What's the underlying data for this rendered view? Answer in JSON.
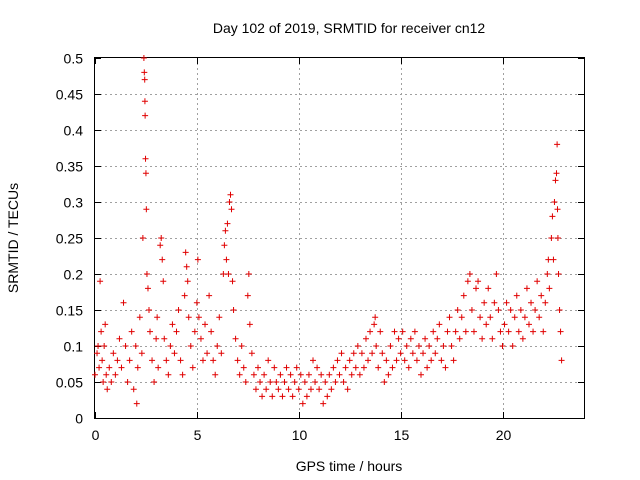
{
  "chart_data": {
    "type": "scatter",
    "title": "Day 102 of 2019, SRMTID for receiver cn12",
    "xlabel": "GPS time / hours",
    "ylabel": "SRMTID / TECUs",
    "xlim": [
      0,
      24
    ],
    "ylim": [
      0,
      0.5
    ],
    "xticks": [
      0,
      5,
      10,
      15,
      20
    ],
    "yticks": [
      0,
      0.05,
      0.1,
      0.15,
      0.2,
      0.25,
      0.3,
      0.35,
      0.4,
      0.45,
      0.5
    ],
    "grid": true,
    "marker": "+",
    "marker_color": "#e00000",
    "series": [
      {
        "name": "cn12",
        "points": [
          [
            0.0,
            0.06
          ],
          [
            0.1,
            0.09
          ],
          [
            0.15,
            0.1
          ],
          [
            0.2,
            0.07
          ],
          [
            0.25,
            0.19
          ],
          [
            0.3,
            0.12
          ],
          [
            0.35,
            0.08
          ],
          [
            0.4,
            0.05
          ],
          [
            0.45,
            0.1
          ],
          [
            0.5,
            0.13
          ],
          [
            0.55,
            0.06
          ],
          [
            0.6,
            0.04
          ],
          [
            0.7,
            0.07
          ],
          [
            0.8,
            0.05
          ],
          [
            0.9,
            0.09
          ],
          [
            1.0,
            0.06
          ],
          [
            1.1,
            0.08
          ],
          [
            1.2,
            0.11
          ],
          [
            1.3,
            0.07
          ],
          [
            1.4,
            0.16
          ],
          [
            1.5,
            0.1
          ],
          [
            1.6,
            0.05
          ],
          [
            1.7,
            0.08
          ],
          [
            1.8,
            0.12
          ],
          [
            1.9,
            0.04
          ],
          [
            2.0,
            0.1
          ],
          [
            2.05,
            0.02
          ],
          [
            2.1,
            0.07
          ],
          [
            2.2,
            0.14
          ],
          [
            2.3,
            0.09
          ],
          [
            2.35,
            0.25
          ],
          [
            2.4,
            0.5
          ],
          [
            2.42,
            0.48
          ],
          [
            2.44,
            0.47
          ],
          [
            2.45,
            0.44
          ],
          [
            2.46,
            0.42
          ],
          [
            2.48,
            0.36
          ],
          [
            2.5,
            0.34
          ],
          [
            2.52,
            0.29
          ],
          [
            2.55,
            0.2
          ],
          [
            2.6,
            0.18
          ],
          [
            2.65,
            0.15
          ],
          [
            2.7,
            0.12
          ],
          [
            2.8,
            0.08
          ],
          [
            2.9,
            0.05
          ],
          [
            3.0,
            0.11
          ],
          [
            3.05,
            0.14
          ],
          [
            3.1,
            0.07
          ],
          [
            3.2,
            0.24
          ],
          [
            3.25,
            0.25
          ],
          [
            3.3,
            0.22
          ],
          [
            3.35,
            0.19
          ],
          [
            3.4,
            0.11
          ],
          [
            3.5,
            0.08
          ],
          [
            3.6,
            0.06
          ],
          [
            3.7,
            0.1
          ],
          [
            3.8,
            0.13
          ],
          [
            3.9,
            0.09
          ],
          [
            4.0,
            0.12
          ],
          [
            4.1,
            0.15
          ],
          [
            4.2,
            0.08
          ],
          [
            4.3,
            0.06
          ],
          [
            4.4,
            0.17
          ],
          [
            4.45,
            0.23
          ],
          [
            4.5,
            0.21
          ],
          [
            4.55,
            0.19
          ],
          [
            4.6,
            0.14
          ],
          [
            4.7,
            0.1
          ],
          [
            4.8,
            0.07
          ],
          [
            4.9,
            0.12
          ],
          [
            5.0,
            0.16
          ],
          [
            5.05,
            0.22
          ],
          [
            5.1,
            0.14
          ],
          [
            5.2,
            0.11
          ],
          [
            5.3,
            0.08
          ],
          [
            5.4,
            0.13
          ],
          [
            5.5,
            0.09
          ],
          [
            5.6,
            0.17
          ],
          [
            5.7,
            0.12
          ],
          [
            5.8,
            0.08
          ],
          [
            5.9,
            0.06
          ],
          [
            6.0,
            0.1
          ],
          [
            6.1,
            0.14
          ],
          [
            6.2,
            0.09
          ],
          [
            6.3,
            0.2
          ],
          [
            6.35,
            0.24
          ],
          [
            6.4,
            0.26
          ],
          [
            6.45,
            0.22
          ],
          [
            6.5,
            0.27
          ],
          [
            6.55,
            0.2
          ],
          [
            6.6,
            0.3
          ],
          [
            6.65,
            0.31
          ],
          [
            6.7,
            0.29
          ],
          [
            6.75,
            0.19
          ],
          [
            6.8,
            0.15
          ],
          [
            6.9,
            0.11
          ],
          [
            7.0,
            0.08
          ],
          [
            7.1,
            0.06
          ],
          [
            7.2,
            0.1
          ],
          [
            7.3,
            0.07
          ],
          [
            7.4,
            0.05
          ],
          [
            7.5,
            0.17
          ],
          [
            7.55,
            0.2
          ],
          [
            7.6,
            0.13
          ],
          [
            7.7,
            0.09
          ],
          [
            7.8,
            0.06
          ],
          [
            7.9,
            0.04
          ],
          [
            8.0,
            0.07
          ],
          [
            8.1,
            0.05
          ],
          [
            8.2,
            0.03
          ],
          [
            8.3,
            0.06
          ],
          [
            8.4,
            0.04
          ],
          [
            8.5,
            0.08
          ],
          [
            8.6,
            0.05
          ],
          [
            8.7,
            0.03
          ],
          [
            8.8,
            0.07
          ],
          [
            8.9,
            0.05
          ],
          [
            9.0,
            0.04
          ],
          [
            9.1,
            0.06
          ],
          [
            9.2,
            0.03
          ],
          [
            9.3,
            0.05
          ],
          [
            9.4,
            0.07
          ],
          [
            9.5,
            0.04
          ],
          [
            9.6,
            0.06
          ],
          [
            9.7,
            0.03
          ],
          [
            9.8,
            0.05
          ],
          [
            9.9,
            0.07
          ],
          [
            10.0,
            0.04
          ],
          [
            10.1,
            0.06
          ],
          [
            10.2,
            0.02
          ],
          [
            10.3,
            0.05
          ],
          [
            10.4,
            0.03
          ],
          [
            10.5,
            0.06
          ],
          [
            10.6,
            0.04
          ],
          [
            10.7,
            0.08
          ],
          [
            10.8,
            0.05
          ],
          [
            10.9,
            0.07
          ],
          [
            11.0,
            0.04
          ],
          [
            11.1,
            0.06
          ],
          [
            11.2,
            0.02
          ],
          [
            11.3,
            0.05
          ],
          [
            11.4,
            0.03
          ],
          [
            11.5,
            0.06
          ],
          [
            11.6,
            0.04
          ],
          [
            11.7,
            0.07
          ],
          [
            11.8,
            0.05
          ],
          [
            11.9,
            0.08
          ],
          [
            12.0,
            0.06
          ],
          [
            12.1,
            0.09
          ],
          [
            12.2,
            0.05
          ],
          [
            12.3,
            0.07
          ],
          [
            12.4,
            0.04
          ],
          [
            12.5,
            0.08
          ],
          [
            12.6,
            0.06
          ],
          [
            12.7,
            0.09
          ],
          [
            12.8,
            0.07
          ],
          [
            12.9,
            0.1
          ],
          [
            13.0,
            0.06
          ],
          [
            13.1,
            0.09
          ],
          [
            13.2,
            0.07
          ],
          [
            13.3,
            0.11
          ],
          [
            13.4,
            0.08
          ],
          [
            13.5,
            0.12
          ],
          [
            13.6,
            0.09
          ],
          [
            13.7,
            0.13
          ],
          [
            13.75,
            0.14
          ],
          [
            13.8,
            0.1
          ],
          [
            13.9,
            0.07
          ],
          [
            14.0,
            0.12
          ],
          [
            14.1,
            0.09
          ],
          [
            14.2,
            0.05
          ],
          [
            14.3,
            0.08
          ],
          [
            14.4,
            0.06
          ],
          [
            14.5,
            0.1
          ],
          [
            14.6,
            0.07
          ],
          [
            14.7,
            0.12
          ],
          [
            14.8,
            0.08
          ],
          [
            14.9,
            0.11
          ],
          [
            15.0,
            0.09
          ],
          [
            15.1,
            0.12
          ],
          [
            15.2,
            0.08
          ],
          [
            15.3,
            0.1
          ],
          [
            15.4,
            0.07
          ],
          [
            15.5,
            0.11
          ],
          [
            15.6,
            0.09
          ],
          [
            15.7,
            0.12
          ],
          [
            15.8,
            0.08
          ],
          [
            15.9,
            0.1
          ],
          [
            16.0,
            0.06
          ],
          [
            16.1,
            0.09
          ],
          [
            16.2,
            0.11
          ],
          [
            16.3,
            0.07
          ],
          [
            16.4,
            0.1
          ],
          [
            16.5,
            0.08
          ],
          [
            16.6,
            0.12
          ],
          [
            16.7,
            0.09
          ],
          [
            16.8,
            0.11
          ],
          [
            16.9,
            0.13
          ],
          [
            17.0,
            0.08
          ],
          [
            17.1,
            0.1
          ],
          [
            17.2,
            0.07
          ],
          [
            17.3,
            0.12
          ],
          [
            17.4,
            0.14
          ],
          [
            17.5,
            0.1
          ],
          [
            17.6,
            0.08
          ],
          [
            17.7,
            0.12
          ],
          [
            17.8,
            0.15
          ],
          [
            17.9,
            0.11
          ],
          [
            18.0,
            0.14
          ],
          [
            18.1,
            0.17
          ],
          [
            18.2,
            0.12
          ],
          [
            18.3,
            0.19
          ],
          [
            18.4,
            0.2
          ],
          [
            18.5,
            0.15
          ],
          [
            18.6,
            0.12
          ],
          [
            18.7,
            0.18
          ],
          [
            18.8,
            0.19
          ],
          [
            18.9,
            0.14
          ],
          [
            19.0,
            0.11
          ],
          [
            19.1,
            0.16
          ],
          [
            19.2,
            0.13
          ],
          [
            19.3,
            0.18
          ],
          [
            19.4,
            0.14
          ],
          [
            19.5,
            0.11
          ],
          [
            19.6,
            0.16
          ],
          [
            19.7,
            0.2
          ],
          [
            19.8,
            0.15
          ],
          [
            19.9,
            0.12
          ],
          [
            20.0,
            0.1
          ],
          [
            20.1,
            0.13
          ],
          [
            20.2,
            0.16
          ],
          [
            20.3,
            0.12
          ],
          [
            20.4,
            0.15
          ],
          [
            20.5,
            0.1
          ],
          [
            20.6,
            0.14
          ],
          [
            20.7,
            0.17
          ],
          [
            20.8,
            0.12
          ],
          [
            20.9,
            0.15
          ],
          [
            21.0,
            0.11
          ],
          [
            21.1,
            0.14
          ],
          [
            21.2,
            0.18
          ],
          [
            21.3,
            0.13
          ],
          [
            21.4,
            0.16
          ],
          [
            21.5,
            0.12
          ],
          [
            21.6,
            0.15
          ],
          [
            21.7,
            0.19
          ],
          [
            21.8,
            0.14
          ],
          [
            21.9,
            0.17
          ],
          [
            22.0,
            0.12
          ],
          [
            22.1,
            0.16
          ],
          [
            22.2,
            0.2
          ],
          [
            22.25,
            0.22
          ],
          [
            22.3,
            0.18
          ],
          [
            22.4,
            0.25
          ],
          [
            22.45,
            0.28
          ],
          [
            22.5,
            0.22
          ],
          [
            22.55,
            0.3
          ],
          [
            22.6,
            0.33
          ],
          [
            22.65,
            0.34
          ],
          [
            22.68,
            0.38
          ],
          [
            22.7,
            0.29
          ],
          [
            22.72,
            0.25
          ],
          [
            22.75,
            0.2
          ],
          [
            22.8,
            0.15
          ],
          [
            22.85,
            0.12
          ],
          [
            22.9,
            0.08
          ]
        ]
      }
    ]
  }
}
